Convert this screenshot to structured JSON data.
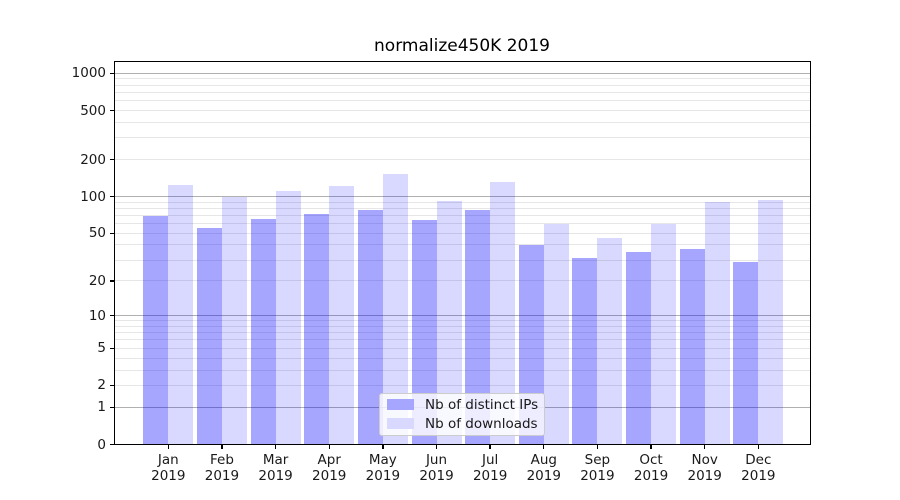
{
  "chart_data": {
    "type": "bar",
    "title": "normalize450K 2019",
    "categories": [
      "Jan",
      "Feb",
      "Mar",
      "Apr",
      "May",
      "Jun",
      "Jul",
      "Aug",
      "Sep",
      "Oct",
      "Nov",
      "Dec"
    ],
    "category_second_line": "2019",
    "series": [
      {
        "name": "Nb of distinct IPs",
        "fill": "rgba(0,0,255,0.35)",
        "solid_hex": "#a6a6ff",
        "values": [
          70,
          55,
          66,
          72,
          78,
          64,
          78,
          40,
          31,
          35,
          37,
          29
        ]
      },
      {
        "name": "Nb of downloads",
        "fill": "rgba(0,0,255,0.15)",
        "solid_hex": "#d9d9ff",
        "values": [
          125,
          100,
          110,
          121,
          152,
          92,
          131,
          60,
          46,
          60,
          90,
          93
        ]
      }
    ],
    "y_axis": {
      "scale": "log10(value+1)",
      "view_max": 1270,
      "ticks": [
        {
          "label": "0",
          "value": 0
        },
        {
          "label": "1",
          "value": 1
        },
        {
          "label": "2",
          "value": 2
        },
        {
          "label": "5",
          "value": 5
        },
        {
          "label": "10",
          "value": 10
        },
        {
          "label": "20",
          "value": 20
        },
        {
          "label": "50",
          "value": 50
        },
        {
          "label": "100",
          "value": 100
        },
        {
          "label": "200",
          "value": 200
        },
        {
          "label": "500",
          "value": 500
        },
        {
          "label": "1000",
          "value": 1000
        }
      ]
    },
    "grid": {
      "major_values": [
        1,
        10,
        100,
        1000
      ],
      "minor_values": [
        2,
        3,
        4,
        5,
        6,
        7,
        8,
        9,
        20,
        30,
        40,
        50,
        60,
        70,
        80,
        90,
        200,
        300,
        400,
        500,
        600,
        700,
        800,
        900
      ],
      "major_color": "#b0b0b0",
      "minor_color": "#e6e6e6"
    },
    "legend": {
      "position": "lower center",
      "items": [
        {
          "label": "Nb of distinct IPs"
        },
        {
          "label": "Nb of downloads"
        }
      ]
    }
  }
}
